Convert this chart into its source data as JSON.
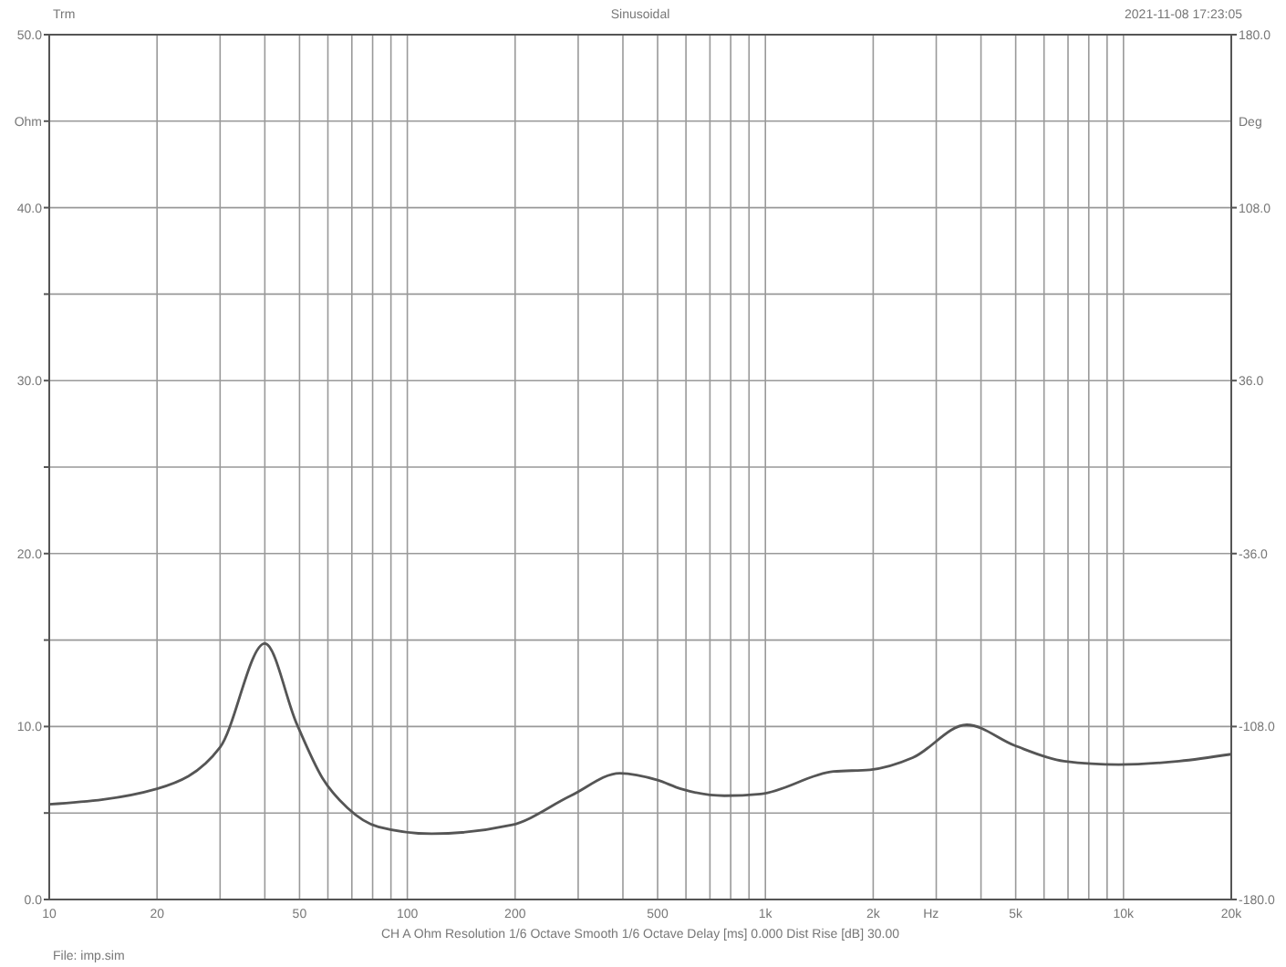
{
  "chart_data": {
    "type": "line",
    "title": "Sinusoidal",
    "subtitle": "2021-11-08 17:23:05",
    "xlabel": "Hz",
    "ylabel": "Ohm",
    "y2label": "Deg",
    "annotations": [
      "Trm",
      "CH A   Ohm   Resolution 1/6 Octave   Smooth 1/6 Octave   Delay [ms] 0.000   Dist Rise [dB] 30.00",
      "File: imp.sim"
    ],
    "log": "x",
    "grid": true,
    "line_style": "solid",
    "marker": "none",
    "xlim": [
      10,
      20000
    ],
    "ylim": [
      0,
      50
    ],
    "y2lim": [
      -180,
      180
    ],
    "xticks": [
      10,
      20,
      {
        "value": 30,
        "label": null
      },
      {
        "value": 40,
        "label": null
      },
      50,
      {
        "value": 60,
        "label": null
      },
      {
        "value": 70,
        "label": null
      },
      {
        "value": 80,
        "label": null
      },
      {
        "value": 90,
        "label": null
      },
      100,
      200,
      {
        "value": 300,
        "label": null
      },
      {
        "value": 400,
        "label": null
      },
      500,
      {
        "value": 600,
        "label": null
      },
      {
        "value": 700,
        "label": null
      },
      {
        "value": 800,
        "label": null
      },
      {
        "value": 900,
        "label": null
      },
      {
        "value": 1000,
        "label": "1k"
      },
      {
        "value": 2000,
        "label": "2k"
      },
      {
        "value": 3000,
        "label": null
      },
      {
        "value": 4000,
        "label": null
      },
      {
        "value": 5000,
        "label": "5k"
      },
      {
        "value": 6000,
        "label": null
      },
      {
        "value": 7000,
        "label": null
      },
      {
        "value": 8000,
        "label": null
      },
      {
        "value": 9000,
        "label": null
      },
      {
        "value": 10000,
        "label": "10k"
      },
      {
        "value": 20000,
        "label": "20k"
      }
    ],
    "yticks": [
      {
        "value": 0,
        "label": "0.0"
      },
      {
        "value": 5,
        "label": null
      },
      {
        "value": 10,
        "label": "10.0"
      },
      {
        "value": 15,
        "label": null
      },
      {
        "value": 20,
        "label": "20.0"
      },
      {
        "value": 25,
        "label": null
      },
      {
        "value": 30,
        "label": "30.0"
      },
      {
        "value": 35,
        "label": null
      },
      {
        "value": 40,
        "label": "40.0"
      },
      {
        "value": 45,
        "label": null
      },
      {
        "value": 50,
        "label": "50.0"
      }
    ],
    "y2ticks": [
      {
        "value": -180,
        "label": "-180.0"
      },
      {
        "value": -108,
        "label": "-108.0"
      },
      {
        "value": -36,
        "label": "-36.0"
      },
      {
        "value": 36,
        "label": "36.0"
      },
      {
        "value": 108,
        "label": "108.0"
      },
      {
        "value": 180,
        "label": "180.0"
      }
    ],
    "series": [
      {
        "color": "#555555",
        "x": [
          10,
          20,
          30,
          40,
          49,
          58,
          68,
          83,
          117,
          195,
          286,
          392,
          500,
          580,
          768,
          970,
          1550,
          1960,
          2580,
          3650,
          4970,
          6820,
          9700,
          14300,
          20000
        ],
        "values": [
          5.5,
          6.4,
          8.8,
          14.8,
          10.2,
          7.0,
          5.3,
          4.2,
          3.8,
          4.3,
          6.0,
          7.3,
          6.9,
          6.4,
          6.0,
          6.1,
          7.4,
          7.5,
          8.2,
          10.1,
          8.9,
          8.0,
          7.8,
          8.0,
          8.4
        ]
      }
    ]
  }
}
